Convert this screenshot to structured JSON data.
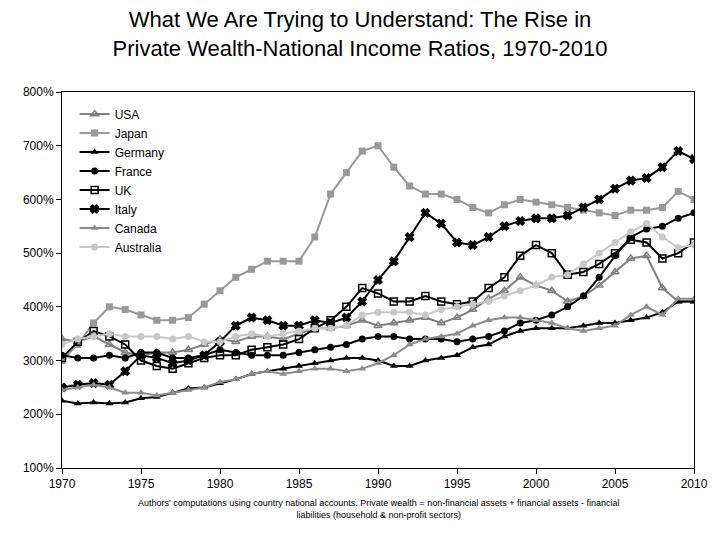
{
  "chart_data": {
    "type": "line",
    "title": "What We Are Trying to Understand: The Rise in\nPrivate Wealth-National Income Ratios, 1970-2010",
    "annotations": [
      "Authors' computations using country national accounts. Private wealth = non-financial assets + financial assets - financial\nliabilities (household & non-profit sectors)"
    ],
    "x": [
      1970,
      1971,
      1972,
      1973,
      1974,
      1975,
      1976,
      1977,
      1978,
      1979,
      1980,
      1981,
      1982,
      1983,
      1984,
      1985,
      1986,
      1987,
      1988,
      1989,
      1990,
      1991,
      1992,
      1993,
      1994,
      1995,
      1996,
      1997,
      1998,
      1999,
      2000,
      2001,
      2002,
      2003,
      2004,
      2005,
      2006,
      2007,
      2008,
      2009,
      2010
    ],
    "xlim": [
      1970,
      2010
    ],
    "xticks": [
      1970,
      1975,
      1980,
      1985,
      1990,
      1995,
      2000,
      2005,
      2010
    ],
    "ylim": [
      100,
      800
    ],
    "yticks": [
      {
        "value": 100,
        "label": "100%"
      },
      {
        "value": 200,
        "label": "200%"
      },
      {
        "value": 300,
        "label": "300%"
      },
      {
        "value": 400,
        "label": "400%"
      },
      {
        "value": 500,
        "label": "500%"
      },
      {
        "value": 600,
        "label": "600%"
      },
      {
        "value": 700,
        "label": "700%"
      },
      {
        "value": 800,
        "label": "800%"
      }
    ],
    "grid": false,
    "legend": "top-left",
    "line_style": "solid",
    "series": [
      {
        "name": "USA",
        "color": "#808080",
        "marker": "triangle-up-open",
        "values": [
          340,
          335,
          345,
          330,
          315,
          310,
          315,
          315,
          320,
          330,
          340,
          335,
          345,
          345,
          340,
          350,
          360,
          360,
          365,
          375,
          365,
          370,
          375,
          380,
          370,
          380,
          395,
          415,
          430,
          455,
          440,
          430,
          410,
          420,
          440,
          465,
          490,
          495,
          435,
          410,
          410
        ]
      },
      {
        "name": "Japan",
        "color": "#999999",
        "marker": "square",
        "values": [
          300,
          330,
          370,
          400,
          395,
          385,
          375,
          375,
          380,
          405,
          430,
          455,
          470,
          485,
          485,
          485,
          530,
          610,
          650,
          690,
          700,
          660,
          625,
          610,
          610,
          600,
          585,
          575,
          590,
          600,
          595,
          590,
          585,
          580,
          575,
          570,
          580,
          580,
          585,
          615,
          600
        ]
      },
      {
        "name": "Germany",
        "color": "#000000",
        "marker": "triangle-up",
        "values": [
          225,
          220,
          222,
          220,
          222,
          230,
          232,
          240,
          248,
          250,
          258,
          265,
          275,
          280,
          285,
          290,
          295,
          300,
          305,
          305,
          300,
          290,
          290,
          300,
          305,
          310,
          325,
          330,
          345,
          355,
          360,
          360,
          360,
          365,
          370,
          370,
          375,
          380,
          390,
          410,
          410
        ]
      },
      {
        "name": "France",
        "color": "#000000",
        "marker": "circle",
        "values": [
          310,
          305,
          305,
          310,
          305,
          315,
          315,
          305,
          305,
          310,
          320,
          315,
          310,
          310,
          310,
          315,
          320,
          325,
          330,
          340,
          345,
          345,
          340,
          340,
          340,
          335,
          340,
          345,
          355,
          370,
          375,
          385,
          400,
          420,
          455,
          495,
          530,
          545,
          550,
          565,
          575
        ]
      },
      {
        "name": "UK",
        "color": "#000000",
        "marker": "square-open",
        "values": [
          305,
          335,
          355,
          345,
          330,
          300,
          290,
          285,
          295,
          305,
          310,
          310,
          320,
          325,
          330,
          340,
          360,
          375,
          400,
          435,
          425,
          410,
          410,
          420,
          410,
          405,
          410,
          435,
          455,
          495,
          515,
          500,
          460,
          465,
          480,
          500,
          525,
          520,
          490,
          500,
          520
        ]
      },
      {
        "name": "Italy",
        "color": "#000000",
        "marker": "x",
        "values": [
          250,
          255,
          258,
          255,
          280,
          310,
          305,
          295,
          300,
          310,
          335,
          365,
          380,
          375,
          365,
          365,
          375,
          370,
          380,
          410,
          450,
          485,
          530,
          575,
          555,
          520,
          515,
          530,
          550,
          560,
          565,
          565,
          570,
          585,
          600,
          620,
          635,
          640,
          660,
          690,
          675
        ]
      },
      {
        "name": "Canada",
        "color": "#8c8c8c",
        "marker": "triangle-up",
        "values": [
          245,
          250,
          255,
          250,
          240,
          240,
          235,
          240,
          245,
          250,
          260,
          265,
          275,
          280,
          275,
          280,
          285,
          285,
          280,
          285,
          295,
          310,
          330,
          340,
          345,
          350,
          365,
          375,
          380,
          380,
          375,
          370,
          360,
          355,
          360,
          365,
          385,
          400,
          385,
          415,
          415
        ]
      },
      {
        "name": "Australia",
        "color": "#c8c8c8",
        "marker": "circle",
        "values": [
          330,
          340,
          345,
          350,
          345,
          345,
          345,
          340,
          345,
          335,
          335,
          345,
          350,
          345,
          350,
          355,
          360,
          360,
          365,
          385,
          390,
          390,
          390,
          385,
          395,
          400,
          405,
          410,
          420,
          430,
          440,
          455,
          460,
          480,
          500,
          520,
          540,
          555,
          530,
          510,
          515
        ]
      }
    ]
  }
}
